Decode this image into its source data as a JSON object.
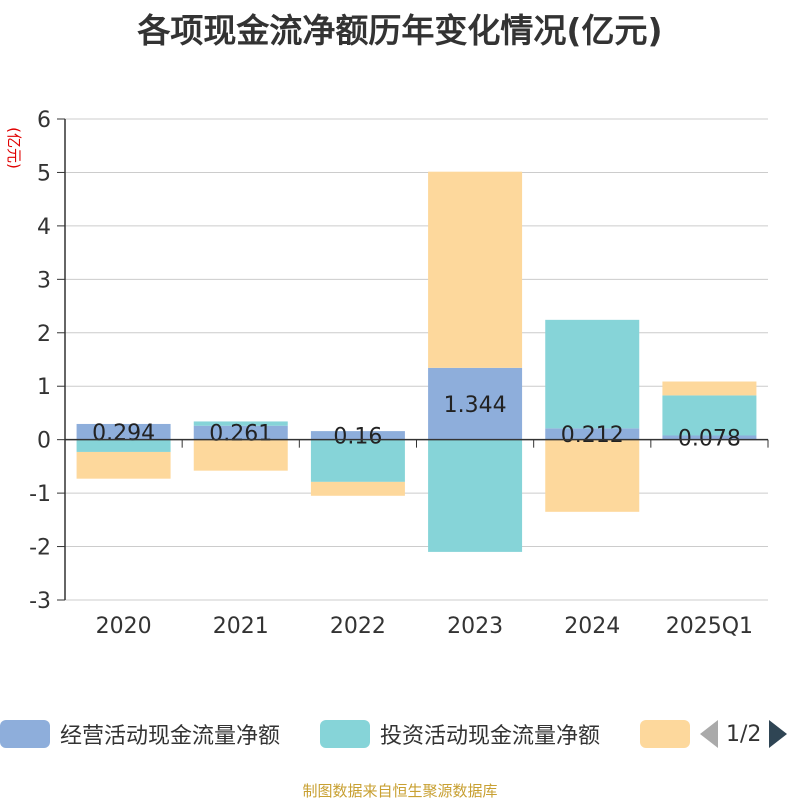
{
  "chart_data": {
    "type": "bar",
    "stacked": true,
    "title": "各项现金流净额历年变化情况(亿元)",
    "ylabel": "(亿元)",
    "categories": [
      "2020",
      "2021",
      "2022",
      "2023",
      "2024",
      "2025Q1"
    ],
    "ylim": [
      -3,
      6
    ],
    "yticks": [
      -3,
      -2,
      -1,
      0,
      1,
      2,
      3,
      4,
      5,
      6
    ],
    "grid": true,
    "legend_position": "bottom",
    "series": [
      {
        "name": "经营活动现金流量净额",
        "color": "#8eaedb",
        "values": [
          0.294,
          0.261,
          0.16,
          1.344,
          0.212,
          0.078
        ],
        "labels": [
          "0.294",
          "0.261",
          "0.16",
          "1.344",
          "0.212",
          "0.078"
        ]
      },
      {
        "name": "投资活动现金流量净额",
        "color": "#86d4d8",
        "values": [
          -0.23,
          0.08,
          -0.79,
          -2.1,
          2.03,
          0.75
        ]
      },
      {
        "color": "#fdd89c",
        "values": [
          -0.5,
          -0.58,
          -0.26,
          3.67,
          -1.35,
          0.26
        ]
      }
    ]
  },
  "legend_pager": "1/2",
  "source_note": "制图数据来自恒生聚源数据库"
}
